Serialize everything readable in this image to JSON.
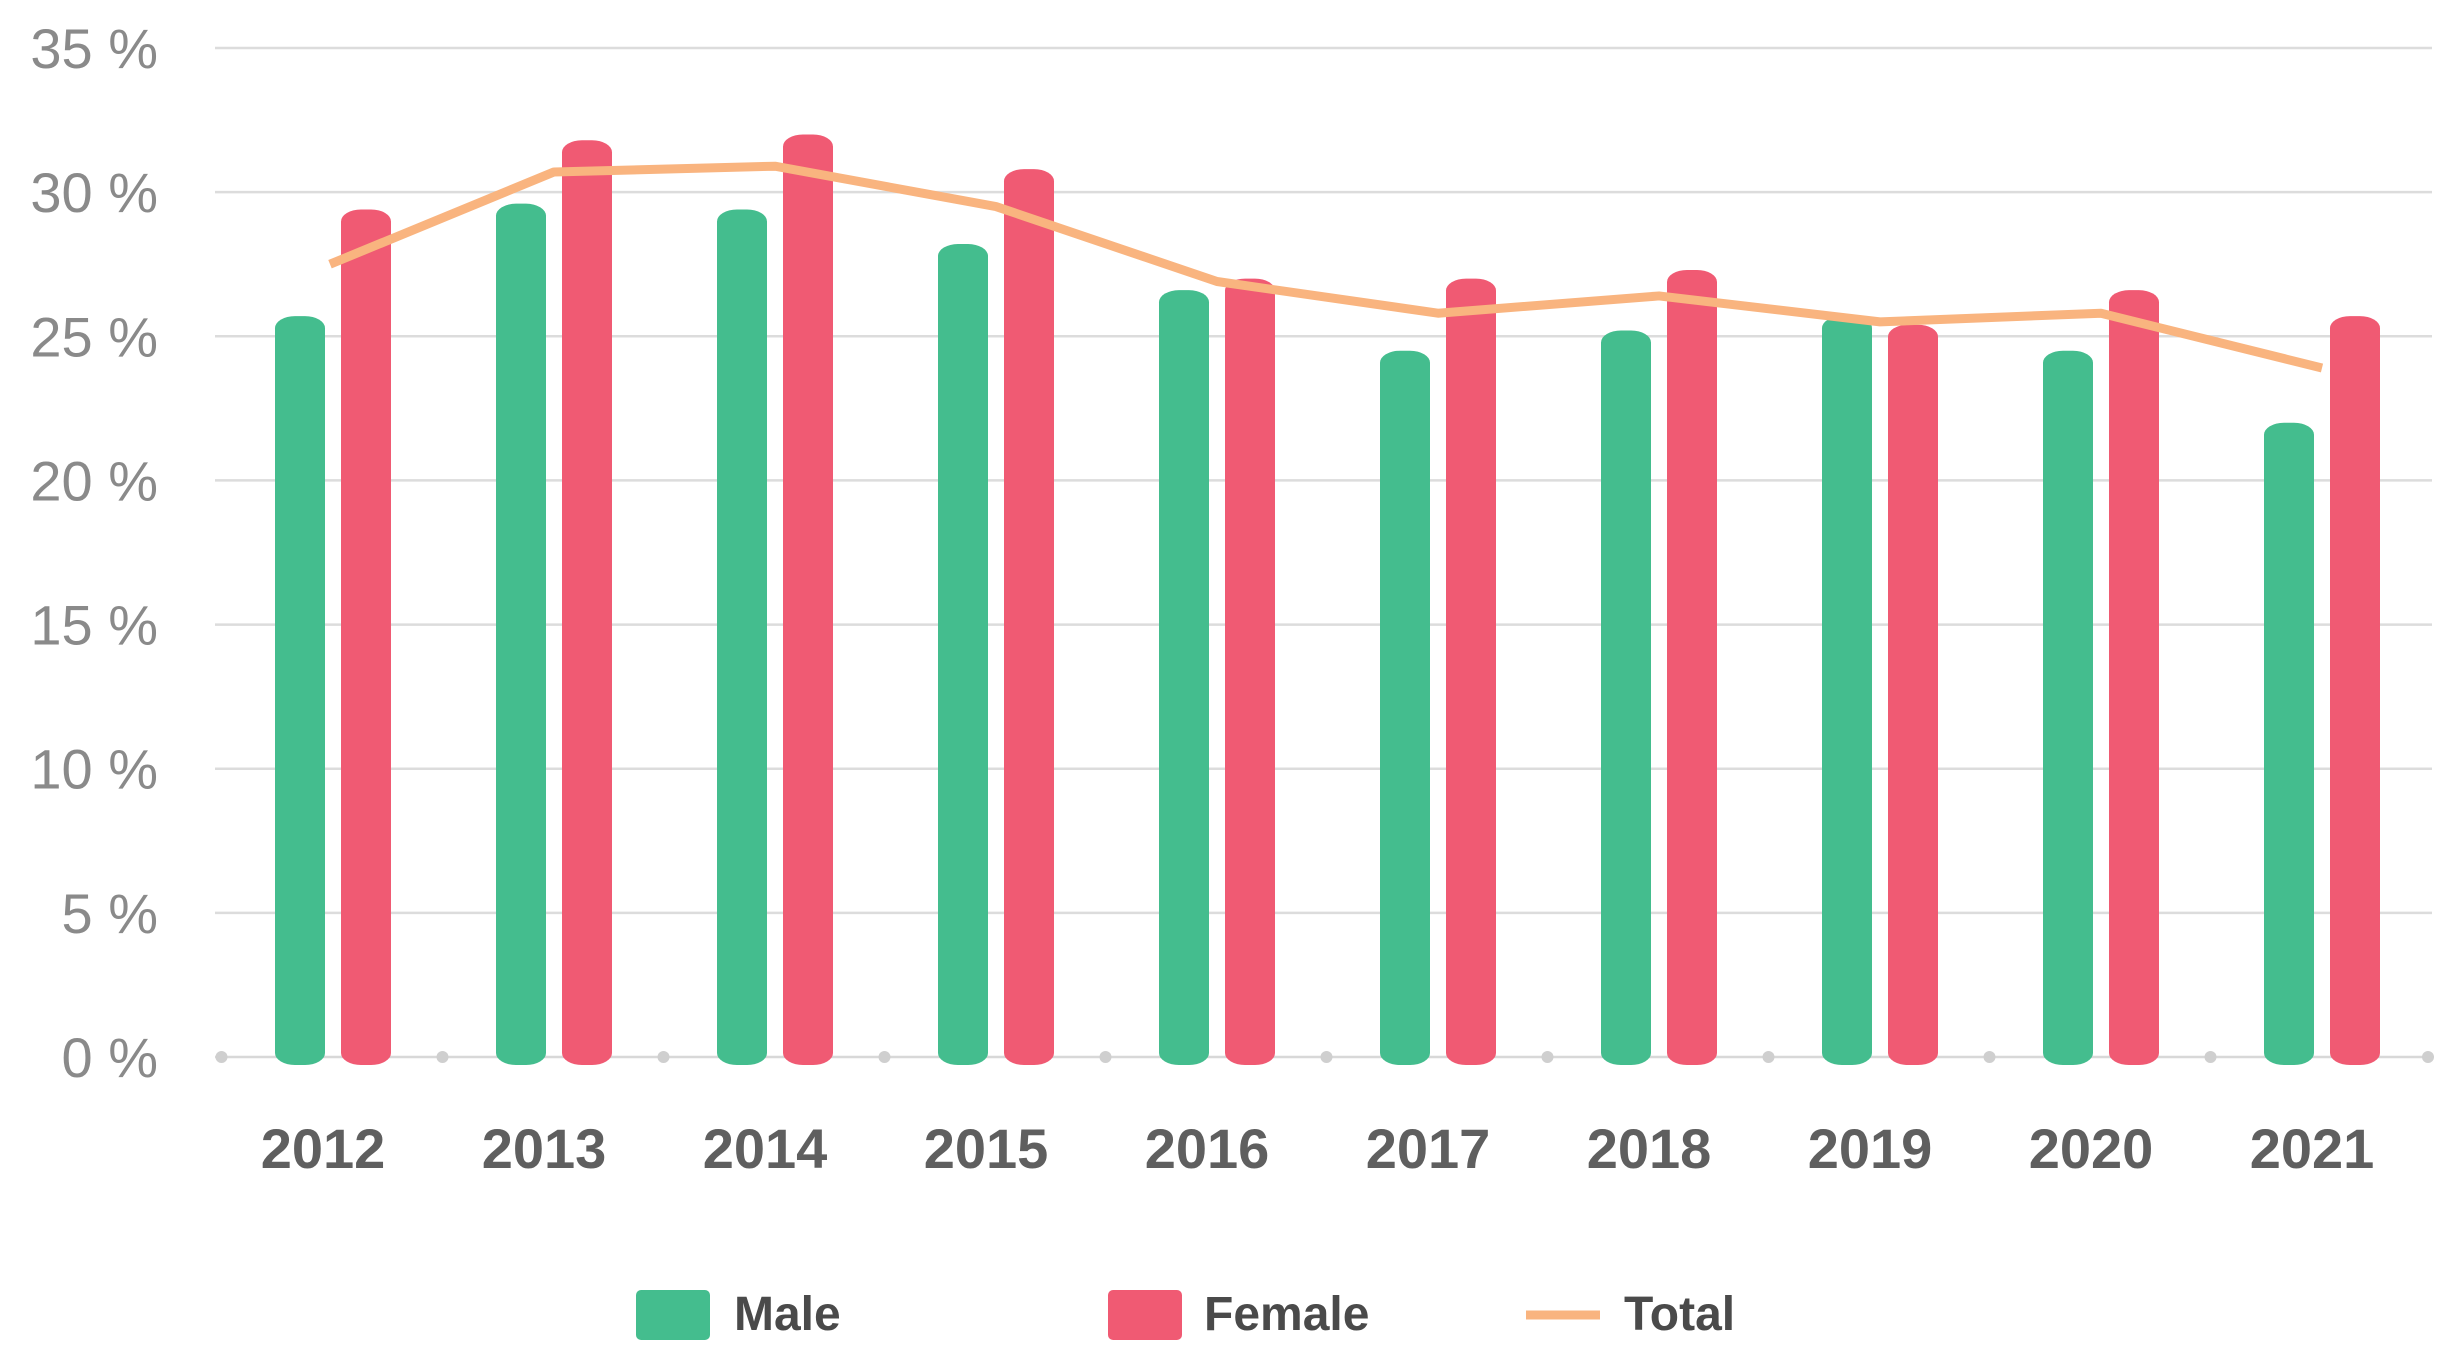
{
  "chart_data": {
    "type": "bar",
    "categories": [
      "2012",
      "2013",
      "2014",
      "2015",
      "2016",
      "2017",
      "2018",
      "2019",
      "2020",
      "2021"
    ],
    "series": [
      {
        "name": "Male",
        "kind": "bar",
        "color": "#44bd8e",
        "values": [
          25.7,
          29.6,
          29.4,
          28.2,
          26.6,
          24.5,
          25.2,
          25.7,
          24.5,
          22.0
        ]
      },
      {
        "name": "Female",
        "kind": "bar",
        "color": "#f05a73",
        "values": [
          29.4,
          31.8,
          32.0,
          30.8,
          27.0,
          27.0,
          27.3,
          25.4,
          26.6,
          25.7
        ]
      },
      {
        "name": "Total",
        "kind": "line",
        "color": "#f9b47f",
        "values": [
          27.5,
          30.7,
          30.9,
          29.5,
          26.9,
          25.8,
          26.4,
          25.5,
          25.8,
          23.9
        ]
      }
    ],
    "yticks": [
      "0 %",
      "5 %",
      "10 %",
      "15 %",
      "20 %",
      "25 %",
      "30 %",
      "35 %"
    ],
    "ylim": [
      0,
      35
    ],
    "grid": true,
    "legend_position": "bottom",
    "title": "",
    "xlabel": "",
    "ylabel": ""
  }
}
